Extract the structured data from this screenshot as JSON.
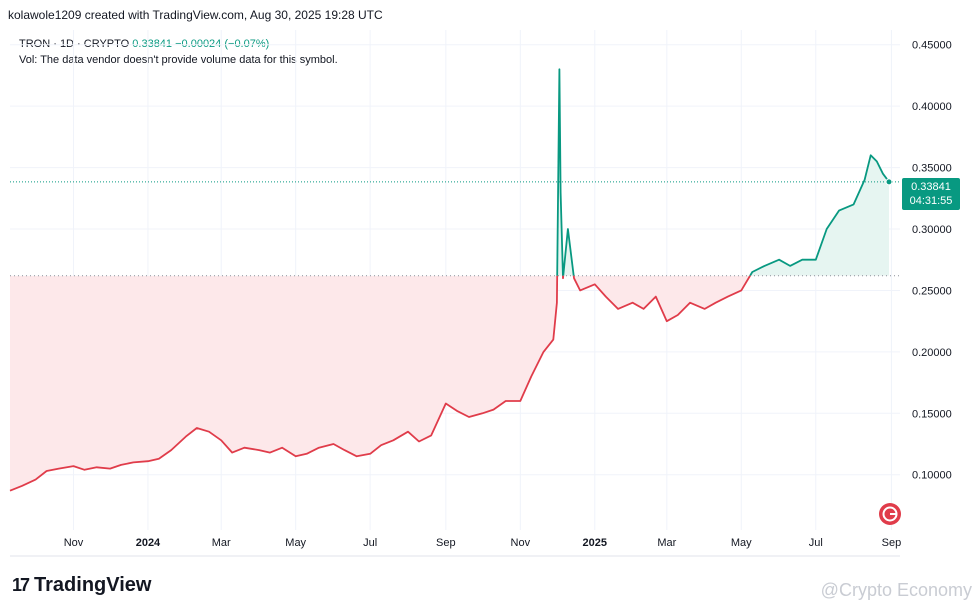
{
  "header": {
    "created_by": "kolawole1209 created with TradingView.com, Aug 30, 2025 19:28 UTC"
  },
  "legend": {
    "symbol": "TRON · 1D · CRYPTO",
    "price": "0.33841",
    "change": "−0.00024 (−0.07%)",
    "volume_note": "Vol: The data vendor doesn't provide volume data for this symbol."
  },
  "price_tag": {
    "price": "0.33841",
    "countdown": "04:31:55"
  },
  "brand": {
    "name": "TradingView",
    "watermark": "@Crypto Economy"
  },
  "colors": {
    "up": "#089981",
    "down": "#e03c4a",
    "up_fill": "#e6f5f1",
    "down_fill": "#fde8ea",
    "grid": "#f0f3fa"
  },
  "chart_data": {
    "type": "area",
    "baseline": 0.262,
    "last_price": 0.33841,
    "ylim": [
      0.055,
      0.462
    ],
    "y_ticks": [
      0.1,
      0.15,
      0.2,
      0.25,
      0.3,
      0.35,
      0.4,
      0.45
    ],
    "y_tick_labels": [
      "0.10000",
      "0.15000",
      "0.20000",
      "0.25000",
      "0.30000",
      "0.35000",
      "0.40000",
      "0.45000"
    ],
    "x_labels": [
      "Nov",
      "2024",
      "Mar",
      "May",
      "Jul",
      "Sep",
      "Nov",
      "2025",
      "Mar",
      "May",
      "Jul",
      "Sep"
    ],
    "x_label_dates": [
      "2023-11-01",
      "2024-01-01",
      "2024-03-01",
      "2024-05-01",
      "2024-07-01",
      "2024-09-01",
      "2024-11-01",
      "2025-01-01",
      "2025-03-01",
      "2025-05-01",
      "2025-07-01",
      "2025-09-01"
    ],
    "series": [
      {
        "x": [
          "2023-09-10",
          "2023-09-20",
          "2023-10-01",
          "2023-10-10",
          "2023-10-20",
          "2023-11-01",
          "2023-11-10",
          "2023-11-20",
          "2023-12-01",
          "2023-12-10",
          "2023-12-20",
          "2024-01-01",
          "2024-01-10",
          "2024-01-20",
          "2024-02-01",
          "2024-02-10",
          "2024-02-20",
          "2024-03-01",
          "2024-03-10",
          "2024-03-20",
          "2024-04-01",
          "2024-04-10",
          "2024-04-20",
          "2024-05-01",
          "2024-05-10",
          "2024-05-20",
          "2024-06-01",
          "2024-06-10",
          "2024-06-20",
          "2024-07-01",
          "2024-07-10",
          "2024-07-20",
          "2024-08-01",
          "2024-08-10",
          "2024-08-20",
          "2024-09-01",
          "2024-09-10",
          "2024-09-20",
          "2024-10-01",
          "2024-10-10",
          "2024-10-20",
          "2024-11-01",
          "2024-11-10",
          "2024-11-20",
          "2024-11-28",
          "2024-12-01",
          "2024-12-03",
          "2024-12-04",
          "2024-12-06",
          "2024-12-10",
          "2024-12-15",
          "2024-12-20",
          "2025-01-01",
          "2025-01-10",
          "2025-01-20",
          "2025-02-01",
          "2025-02-10",
          "2025-02-20",
          "2025-03-01",
          "2025-03-10",
          "2025-03-20",
          "2025-04-01",
          "2025-04-10",
          "2025-04-20",
          "2025-05-01",
          "2025-05-10",
          "2025-05-20",
          "2025-06-01",
          "2025-06-10",
          "2025-06-20",
          "2025-07-01",
          "2025-07-10",
          "2025-07-20",
          "2025-08-01",
          "2025-08-10",
          "2025-08-15",
          "2025-08-20",
          "2025-08-25",
          "2025-08-30"
        ],
        "y": [
          0.087,
          0.091,
          0.096,
          0.103,
          0.105,
          0.107,
          0.104,
          0.106,
          0.105,
          0.108,
          0.11,
          0.111,
          0.113,
          0.12,
          0.131,
          0.138,
          0.135,
          0.128,
          0.118,
          0.122,
          0.12,
          0.118,
          0.122,
          0.115,
          0.117,
          0.122,
          0.125,
          0.12,
          0.115,
          0.117,
          0.124,
          0.128,
          0.135,
          0.127,
          0.132,
          0.158,
          0.152,
          0.147,
          0.15,
          0.153,
          0.16,
          0.16,
          0.18,
          0.2,
          0.21,
          0.24,
          0.43,
          0.33,
          0.26,
          0.3,
          0.26,
          0.25,
          0.255,
          0.245,
          0.235,
          0.24,
          0.235,
          0.245,
          0.225,
          0.23,
          0.24,
          0.235,
          0.24,
          0.245,
          0.25,
          0.265,
          0.27,
          0.275,
          0.27,
          0.275,
          0.275,
          0.3,
          0.315,
          0.32,
          0.34,
          0.36,
          0.355,
          0.345,
          0.33841
        ]
      }
    ]
  }
}
